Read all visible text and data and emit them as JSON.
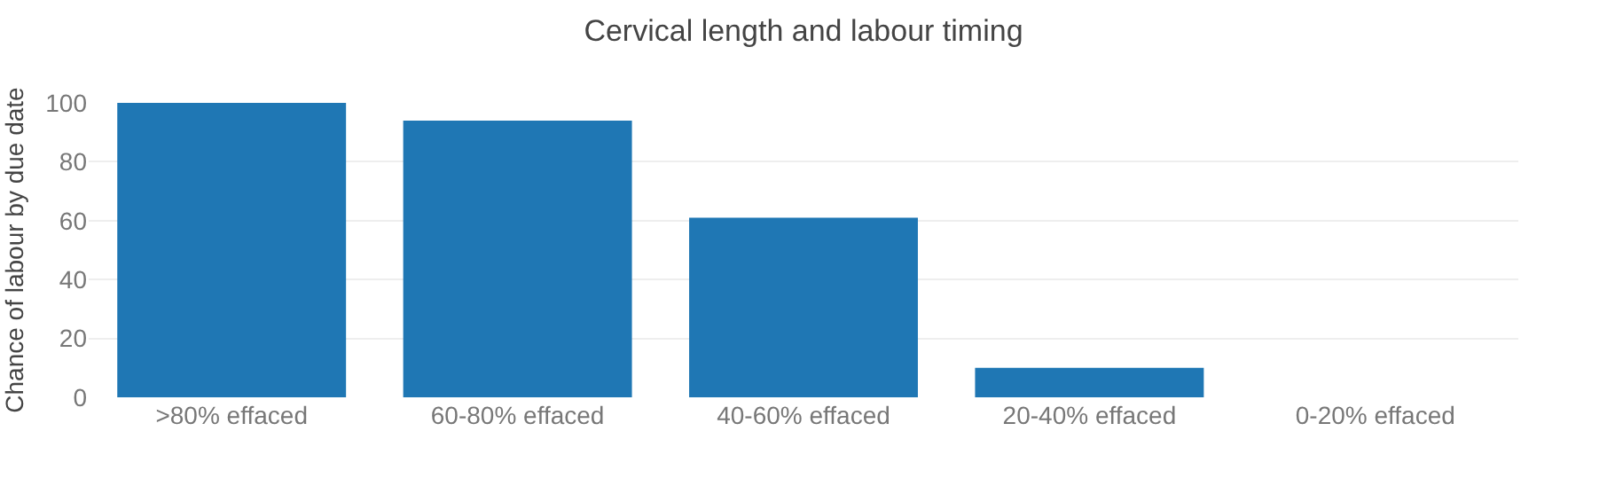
{
  "chart_data": {
    "type": "bar",
    "title": "Cervical length and labour timing",
    "ylabel": "Chance of labour by due date",
    "categories": [
      ">80% effaced",
      "60-80% effaced",
      "40-60% effaced",
      "20-40% effaced",
      "0-20% effaced"
    ],
    "values": [
      100,
      94,
      61,
      10,
      0
    ],
    "color": "#1f77b4",
    "ylim": [
      0,
      100
    ],
    "yticks": [
      0,
      20,
      40,
      60,
      80,
      100
    ],
    "grid": "y"
  }
}
